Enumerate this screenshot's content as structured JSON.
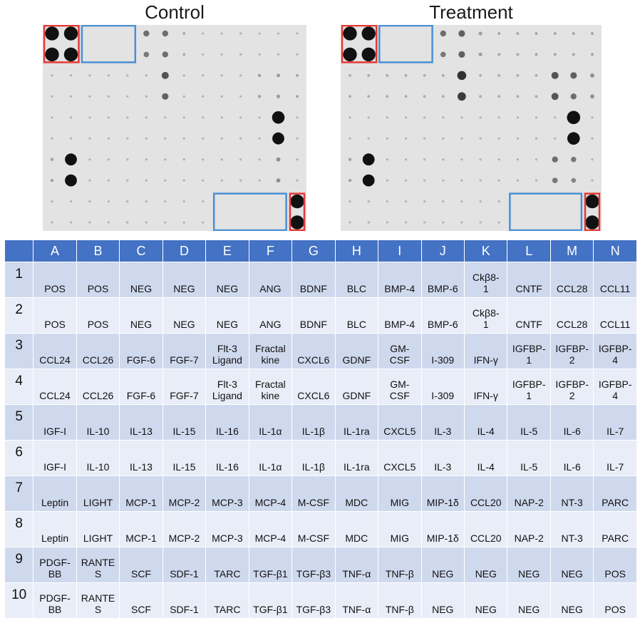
{
  "titles": {
    "control": "Control",
    "treatment": "Treatment"
  },
  "columns": [
    "A",
    "B",
    "C",
    "D",
    "E",
    "F",
    "G",
    "H",
    "I",
    "J",
    "K",
    "L",
    "M",
    "N"
  ],
  "rows": [
    {
      "num": "1",
      "cells": [
        "POS",
        "POS",
        "NEG",
        "NEG",
        "NEG",
        "ANG",
        "BDNF",
        "BLC",
        "BMP-4",
        "BMP-6",
        "Ckβ8-\n1",
        "CNTF",
        "CCL28",
        "CCL11"
      ]
    },
    {
      "num": "2",
      "cells": [
        "POS",
        "POS",
        "NEG",
        "NEG",
        "NEG",
        "ANG",
        "BDNF",
        "BLC",
        "BMP-4",
        "BMP-6",
        "Ckβ8-\n1",
        "CNTF",
        "CCL28",
        "CCL11"
      ]
    },
    {
      "num": "3",
      "cells": [
        "CCL24",
        "CCL26",
        "FGF-6",
        "FGF-7",
        "Flt-3\nLigand",
        "Fractal\nkine",
        "CXCL6",
        "GDNF",
        "GM-\nCSF",
        "I-309",
        "IFN-γ",
        "IGFBP-\n1",
        "IGFBP-\n2",
        "IGFBP-\n4"
      ]
    },
    {
      "num": "4",
      "cells": [
        "CCL24",
        "CCL26",
        "FGF-6",
        "FGF-7",
        "Flt-3\nLigand",
        "Fractal\nkine",
        "CXCL6",
        "GDNF",
        "GM-\nCSF",
        "I-309",
        "IFN-γ",
        "IGFBP-\n1",
        "IGFBP-\n2",
        "IGFBP-\n4"
      ]
    },
    {
      "num": "5",
      "cells": [
        "IGF-I",
        "IL-10",
        "IL-13",
        "IL-15",
        "IL-16",
        "IL-1α",
        "IL-1β",
        "IL-1ra",
        "CXCL5",
        "IL-3",
        "IL-4",
        "IL-5",
        "IL-6",
        "IL-7"
      ]
    },
    {
      "num": "6",
      "cells": [
        "IGF-I",
        "IL-10",
        "IL-13",
        "IL-15",
        "IL-16",
        "IL-1α",
        "IL-1β",
        "IL-1ra",
        "CXCL5",
        "IL-3",
        "IL-4",
        "IL-5",
        "IL-6",
        "IL-7"
      ]
    },
    {
      "num": "7",
      "cells": [
        "Leptin",
        "LIGHT",
        "MCP-1",
        "MCP-2",
        "MCP-3",
        "MCP-4",
        "M-CSF",
        "MDC",
        "MIG",
        "MIP-1δ",
        "CCL20",
        "NAP-2",
        "NT-3",
        "PARC"
      ]
    },
    {
      "num": "8",
      "cells": [
        "Leptin",
        "LIGHT",
        "MCP-1",
        "MCP-2",
        "MCP-3",
        "MCP-4",
        "M-CSF",
        "MDC",
        "MIG",
        "MIP-1δ",
        "CCL20",
        "NAP-2",
        "NT-3",
        "PARC"
      ]
    },
    {
      "num": "9",
      "cells": [
        "PDGF-\nBB",
        "RANTE\nS",
        "SCF",
        "SDF-1",
        "TARC",
        "TGF-β1",
        "TGF-β3",
        "TNF-α",
        "TNF-β",
        "NEG",
        "NEG",
        "NEG",
        "NEG",
        "POS"
      ]
    },
    {
      "num": "10",
      "cells": [
        "PDGF-\nBB",
        "RANTE\nS",
        "SCF",
        "SDF-1",
        "TARC",
        "TGF-β1",
        "TGF-β3",
        "TNF-α",
        "TNF-β",
        "NEG",
        "NEG",
        "NEG",
        "NEG",
        "POS"
      ]
    }
  ],
  "blots": {
    "colors": {
      "dot": "#111111",
      "positive_box": "#e53935",
      "negative_box": "#4a8fd4",
      "background": "#e3e3e3"
    },
    "control_intensity": [
      [
        1,
        1,
        0,
        0,
        0,
        0.35,
        0.35,
        0.08,
        0.05,
        0.05,
        0.05,
        0.05,
        0.05,
        0.05
      ],
      [
        1,
        1,
        0,
        0,
        0,
        0.3,
        0.35,
        0.08,
        0.05,
        0.05,
        0.05,
        0.05,
        0.05,
        0.05
      ],
      [
        0.05,
        0.05,
        0.05,
        0.05,
        0.05,
        0.05,
        0.45,
        0.05,
        0.05,
        0.05,
        0.05,
        0.12,
        0.15,
        0.1
      ],
      [
        0.05,
        0.05,
        0.05,
        0.05,
        0.05,
        0.05,
        0.4,
        0.05,
        0.05,
        0.05,
        0.05,
        0.12,
        0.15,
        0.1
      ],
      [
        0.05,
        0.05,
        0.05,
        0.05,
        0.05,
        0.05,
        0.05,
        0.05,
        0.05,
        0.05,
        0.05,
        0.05,
        0.9,
        0.05
      ],
      [
        0.05,
        0.05,
        0.05,
        0.05,
        0.05,
        0.05,
        0.05,
        0.05,
        0.05,
        0.05,
        0.05,
        0.05,
        0.85,
        0.05
      ],
      [
        0.12,
        0.85,
        0.05,
        0.05,
        0.05,
        0.05,
        0.05,
        0.05,
        0.05,
        0.05,
        0.05,
        0.05,
        0.2,
        0.05
      ],
      [
        0.12,
        0.85,
        0.05,
        0.05,
        0.05,
        0.05,
        0.05,
        0.05,
        0.05,
        0.05,
        0.05,
        0.05,
        0.2,
        0.05
      ],
      [
        0.05,
        0.05,
        0.05,
        0.05,
        0.05,
        0.05,
        0.05,
        0.05,
        0.05,
        0,
        0,
        0,
        0,
        1
      ],
      [
        0.05,
        0.05,
        0.05,
        0.05,
        0.05,
        0.05,
        0.05,
        0.05,
        0.05,
        0,
        0,
        0,
        0,
        1
      ]
    ],
    "treatment_intensity": [
      [
        1,
        1,
        0,
        0,
        0,
        0.35,
        0.4,
        0.15,
        0.1,
        0.1,
        0.1,
        0.1,
        0.1,
        0.1
      ],
      [
        1,
        1,
        0,
        0,
        0,
        0.3,
        0.4,
        0.15,
        0.1,
        0.1,
        0.1,
        0.1,
        0.1,
        0.1
      ],
      [
        0.08,
        0.08,
        0.08,
        0.08,
        0.08,
        0.08,
        0.6,
        0.08,
        0.08,
        0.08,
        0.08,
        0.45,
        0.4,
        0.2
      ],
      [
        0.08,
        0.08,
        0.08,
        0.08,
        0.08,
        0.08,
        0.55,
        0.08,
        0.08,
        0.08,
        0.08,
        0.45,
        0.35,
        0.2
      ],
      [
        0.05,
        0.05,
        0.05,
        0.05,
        0.05,
        0.05,
        0.05,
        0.05,
        0.05,
        0.05,
        0.05,
        0.05,
        0.95,
        0.05
      ],
      [
        0.05,
        0.05,
        0.05,
        0.05,
        0.05,
        0.05,
        0.05,
        0.05,
        0.05,
        0.05,
        0.05,
        0.05,
        0.9,
        0.05
      ],
      [
        0.12,
        0.85,
        0.05,
        0.05,
        0.05,
        0.05,
        0.05,
        0.05,
        0.05,
        0.05,
        0.05,
        0.35,
        0.3,
        0.05
      ],
      [
        0.12,
        0.85,
        0.05,
        0.05,
        0.05,
        0.05,
        0.05,
        0.05,
        0.05,
        0.05,
        0.05,
        0.3,
        0.25,
        0.05
      ],
      [
        0.05,
        0.05,
        0.05,
        0.05,
        0.05,
        0.05,
        0.05,
        0.05,
        0.05,
        0,
        0,
        0,
        0,
        1
      ],
      [
        0.05,
        0.05,
        0.05,
        0.05,
        0.05,
        0.05,
        0.05,
        0.05,
        0.05,
        0,
        0,
        0,
        0,
        1
      ]
    ]
  }
}
